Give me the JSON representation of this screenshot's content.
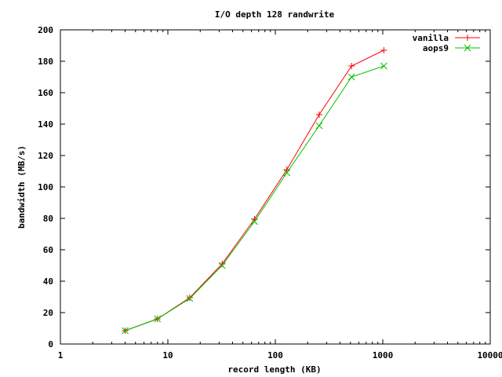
{
  "chart_data": {
    "type": "line",
    "title": "I/O depth 128 randwrite",
    "xlabel": "record length (KB)",
    "ylabel": "bandwidth (MB/s)",
    "x_scale": "log",
    "xlim": [
      1,
      10000
    ],
    "ylim": [
      0,
      200
    ],
    "x_ticks": [
      1,
      10,
      100,
      1000,
      10000
    ],
    "x_tick_labels": [
      "1",
      "10",
      "100",
      "1000",
      "10000"
    ],
    "y_ticks": [
      0,
      20,
      40,
      60,
      80,
      100,
      120,
      140,
      160,
      180,
      200
    ],
    "y_tick_labels": [
      "0",
      "20",
      "40",
      "60",
      "80",
      "100",
      "120",
      "140",
      "160",
      "180",
      "200"
    ],
    "grid": false,
    "legend_position": "top-right",
    "x": [
      4,
      8,
      16,
      32,
      64,
      128,
      256,
      512,
      1024
    ],
    "series": [
      {
        "name": "vanilla",
        "color": "#ff0000",
        "marker": "plus",
        "values": [
          8.5,
          16,
          29.5,
          51,
          79.5,
          111,
          146,
          177,
          187
        ]
      },
      {
        "name": "aops9",
        "color": "#00c000",
        "marker": "cross",
        "values": [
          8.5,
          16,
          29,
          50,
          78,
          109,
          139,
          170,
          177
        ]
      }
    ]
  }
}
